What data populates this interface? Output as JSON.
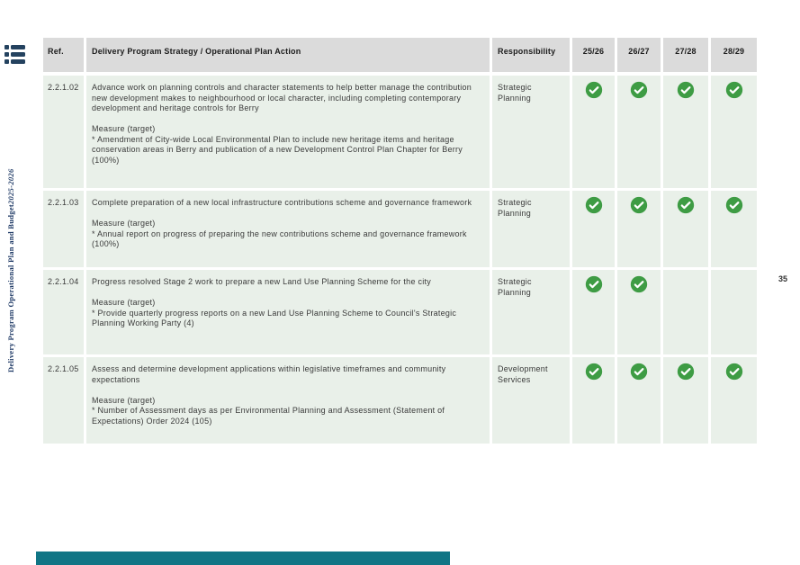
{
  "page": {
    "number": "35"
  },
  "spine": {
    "title_main": "Delivery Program Operational Plan and Budget ",
    "title_years": "2025-2026"
  },
  "icons": {
    "toc": "toc-list-icon",
    "check": "check-circle-icon"
  },
  "colors": {
    "header_bg": "#dbdbdb",
    "row_bg": "#e9f0e9",
    "check_green": "#3e9c44",
    "navy": "#1f3a66",
    "accent_teal": "#107585"
  },
  "table": {
    "headers": {
      "ref": "Ref.",
      "action": "Delivery Program Strategy / Operational Plan Action",
      "responsibility": "Responsibility",
      "y1": "25/26",
      "y2": "26/27",
      "y3": "27/28",
      "y4": "28/29"
    },
    "rows": [
      {
        "ref": "2.2.1.02",
        "action": "Advance work on planning controls and character statements to help better manage the contribution new development makes to neighbourhood or local character, including completing contemporary development and heritage controls for Berry",
        "measure_label": "Measure (target)",
        "measures": [
          "* Amendment of City-wide Local Environmental Plan to include new heritage items and heritage conservation areas in Berry and publication of a new Development Control Plan Chapter for Berry (100%)"
        ],
        "responsibility": "Strategic Planning",
        "checks": [
          true,
          true,
          true,
          true
        ]
      },
      {
        "ref": "2.2.1.03",
        "action": "Complete preparation of a new local infrastructure contributions scheme and governance framework",
        "measure_label": "Measure (target)",
        "measures": [
          "* Annual report on progress of preparing the new contributions scheme and governance framework (100%)"
        ],
        "responsibility": "Strategic Planning",
        "checks": [
          true,
          true,
          true,
          true
        ]
      },
      {
        "ref": "2.2.1.04",
        "action": "Progress resolved Stage 2 work to prepare a new Land Use Planning Scheme for the city",
        "measure_label": "Measure (target)",
        "measures": [
          "* Provide quarterly progress reports on a new Land Use Planning Scheme to Council's Strategic Planning Working Party (4)"
        ],
        "responsibility": "Strategic Planning",
        "checks": [
          true,
          true,
          false,
          false
        ]
      },
      {
        "ref": "2.2.1.05",
        "action": "Assess and determine development applications within legislative timeframes and community expectations",
        "measure_label": "Measure (target)",
        "measures": [
          "* Number of Assessment days as per Environmental Planning and Assessment (Statement of Expectations) Order 2024 (105)"
        ],
        "responsibility": "Development Services",
        "checks": [
          true,
          true,
          true,
          true
        ]
      }
    ]
  }
}
